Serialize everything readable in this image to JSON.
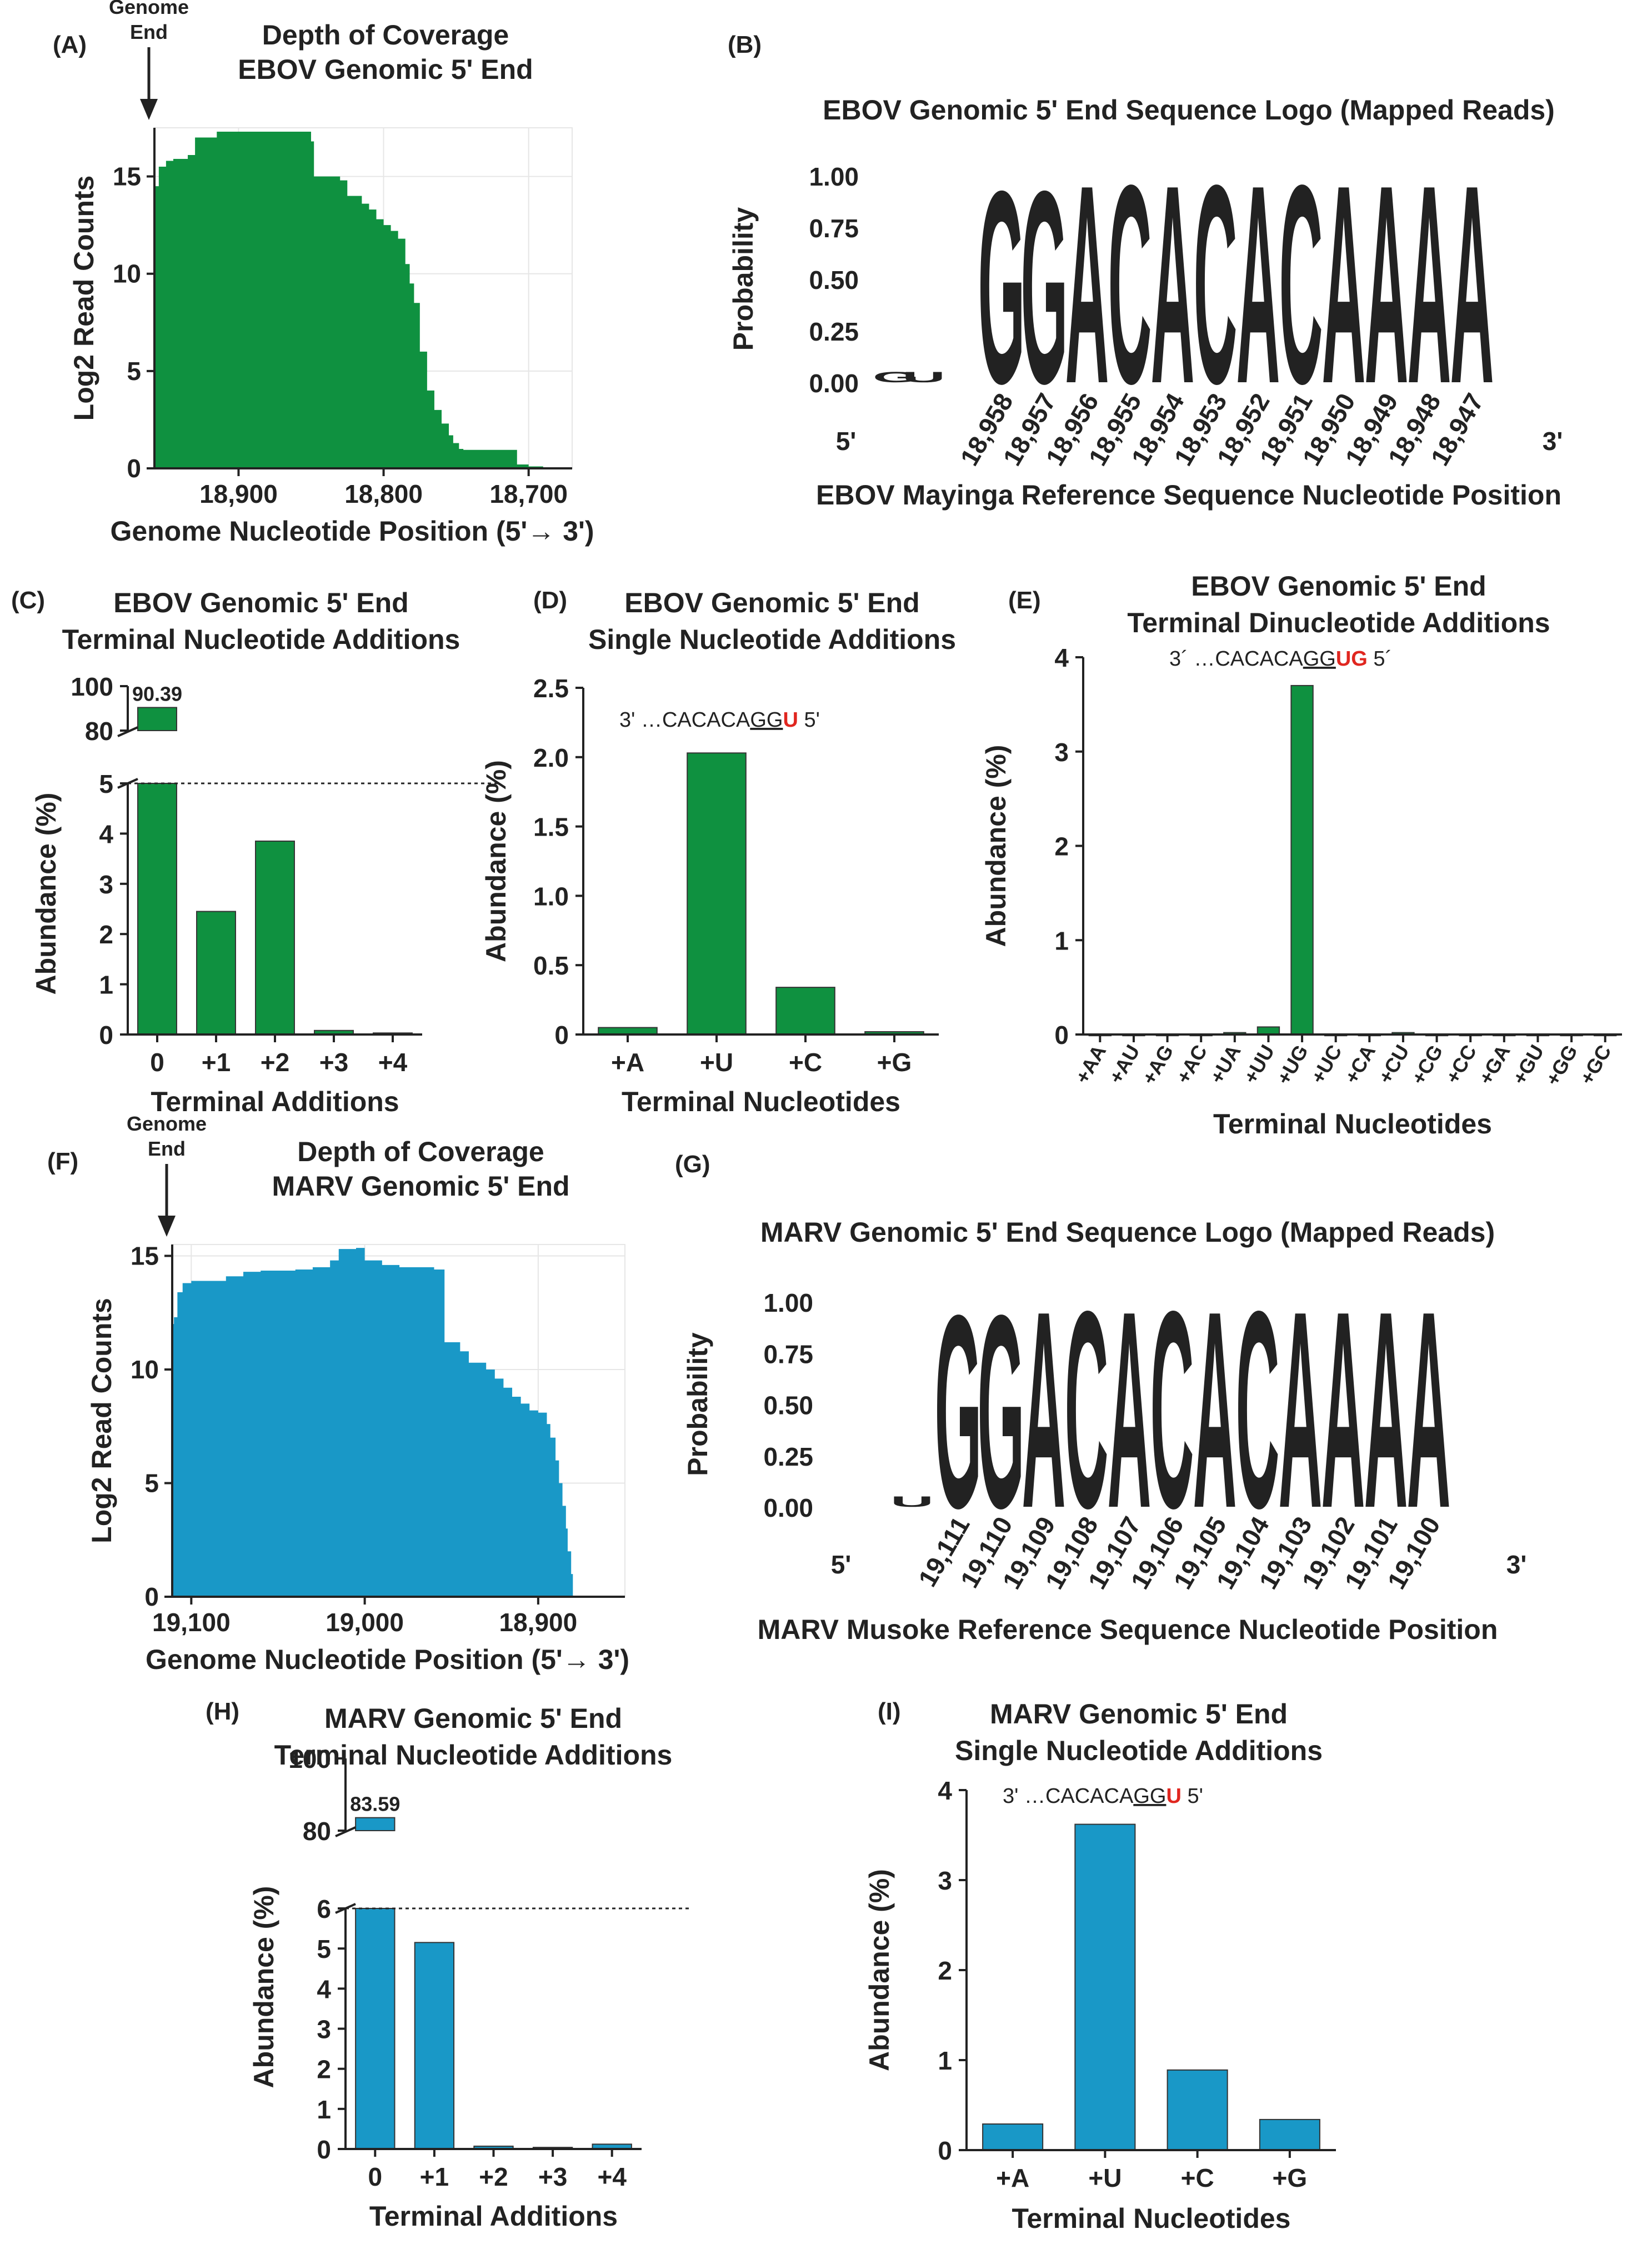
{
  "colors": {
    "ebov": "#0f9140",
    "marv": "#1998c7",
    "red": "#e0261f",
    "logoA": "#19a23c",
    "logoC": "#1a5fa6",
    "logoG": "#f7ae1a",
    "logoU": "#e0261f"
  },
  "panel_labels": {
    "A": "(A)",
    "B": "(B)",
    "C": "(C)",
    "D": "(D)",
    "E": "(E)",
    "F": "(F)",
    "G": "(G)",
    "H": "(H)",
    "I": "(I)"
  },
  "annotations": {
    "genome_end_line1": "Genome",
    "genome_end_line2": "End",
    "five_prime": "5'",
    "three_prime": "3'"
  },
  "chart_data": [
    {
      "id": "A",
      "type": "area",
      "title": [
        "Depth of Coverage",
        "EBOV Genomic 5' End"
      ],
      "xlabel": "Genome Nucleotide Position (5'→ 3')",
      "ylabel": "Log2 Read Counts",
      "xlim": [
        18958,
        18670
      ],
      "ylim": [
        0,
        17.5
      ],
      "xticks": [
        18900,
        18800,
        18700
      ],
      "xtick_labels": [
        "18,900",
        "18,800",
        "18,700"
      ],
      "yticks": [
        0,
        5,
        10,
        15
      ],
      "ytick_labels": [
        "0",
        "5",
        "10",
        "15"
      ],
      "x": [
        18958,
        18955,
        18950,
        18945,
        18935,
        18930,
        18915,
        18860,
        18850,
        18848,
        18830,
        18825,
        18815,
        18810,
        18805,
        18800,
        18795,
        18790,
        18785,
        18782,
        18779,
        18775,
        18770,
        18765,
        18760,
        18755,
        18752,
        18748,
        18745,
        18720,
        18710,
        18708,
        18700,
        18690
      ],
      "y": [
        14.5,
        15.5,
        15.8,
        15.9,
        16.1,
        17.0,
        17.3,
        17.3,
        16.8,
        15.0,
        14.8,
        14.0,
        13.6,
        13.3,
        12.8,
        12.5,
        12.2,
        11.8,
        10.5,
        9.5,
        8.5,
        6.0,
        4.0,
        3.0,
        2.3,
        1.7,
        1.3,
        1.0,
        0.95,
        0.95,
        0.95,
        0.2,
        0.1,
        0.05
      ]
    },
    {
      "id": "B",
      "type": "sequence_logo",
      "title": "EBOV Genomic 5' End Sequence Logo (Mapped Reads)",
      "xlabel": "EBOV Mayinga Reference Sequence Nucleotide Position",
      "ylabel": "Probability",
      "yticks": [
        "0.00",
        "0.25",
        "0.50",
        "0.75",
        "1.00"
      ],
      "ylim": [
        0,
        1
      ],
      "extra_positions": [
        {
          "letters": "GU",
          "height": 0.04
        }
      ],
      "positions": [
        "18,958",
        "18,957",
        "18,956",
        "18,955",
        "18,954",
        "18,953",
        "18,952",
        "18,951",
        "18,950",
        "18,949",
        "18,948",
        "18,947"
      ],
      "letters": [
        "G",
        "G",
        "A",
        "C",
        "A",
        "C",
        "A",
        "C",
        "A",
        "A",
        "A",
        "A"
      ],
      "heights": [
        0.97,
        0.97,
        1.0,
        1.0,
        1.0,
        1.0,
        1.0,
        1.0,
        1.0,
        1.0,
        1.0,
        1.0
      ]
    },
    {
      "id": "C",
      "type": "bar",
      "title": [
        "EBOV Genomic 5' End",
        "Terminal Nucleotide Additions"
      ],
      "xlabel": "Terminal Additions",
      "ylabel": "Abundance (%)",
      "categories": [
        "0",
        "+1",
        "+2",
        "+3",
        "+4"
      ],
      "values": [
        90.39,
        2.45,
        3.85,
        0.08,
        0.03
      ],
      "value_label": "90.39",
      "axis_break": [
        5,
        80
      ],
      "yticks_low": [
        "0",
        "1",
        "2",
        "3",
        "4",
        "5"
      ],
      "yticks_high": [
        "80",
        "100"
      ]
    },
    {
      "id": "D",
      "type": "bar",
      "title": [
        "EBOV Genomic 5' End",
        "Single Nucleotide Additions"
      ],
      "xlabel": "Terminal Nucleotides",
      "ylabel": "Abundance (%)",
      "categories": [
        "+A",
        "+U",
        "+C",
        "+G"
      ],
      "values": [
        0.05,
        2.03,
        0.34,
        0.02
      ],
      "ylim": [
        0,
        2.5
      ],
      "yticks": [
        "0",
        "0.5",
        "1.0",
        "1.5",
        "2.0",
        "2.5"
      ],
      "sequence": {
        "prefix": "3' …CACACA",
        "underlined": "GG",
        "red": "U",
        "suffix": " 5'"
      }
    },
    {
      "id": "E",
      "type": "bar",
      "title": [
        "EBOV Genomic 5' End",
        "Terminal Dinucleotide Additions"
      ],
      "xlabel": "Terminal Nucleotides",
      "ylabel": "Abundance (%)",
      "categories": [
        "+AA",
        "+AU",
        "+AG",
        "+AC",
        "+UA",
        "+UU",
        "+UG",
        "+UC",
        "+CA",
        "+CU",
        "+CG",
        "+CC",
        "+GA",
        "+GU",
        "+GG",
        "+GC"
      ],
      "values": [
        0.005,
        0.005,
        0.005,
        0.005,
        0.02,
        0.08,
        3.7,
        0.005,
        0.005,
        0.02,
        0.005,
        0.005,
        0.005,
        0.005,
        0.005,
        0.005
      ],
      "ylim": [
        0,
        4
      ],
      "yticks": [
        "0",
        "1",
        "2",
        "3",
        "4"
      ],
      "sequence": {
        "prefix": "3´ …CACACA",
        "underlined": "GG",
        "red": "UG",
        "suffix": " 5´"
      }
    },
    {
      "id": "F",
      "type": "area",
      "title": [
        "Depth of Coverage",
        "MARV Genomic 5' End"
      ],
      "xlabel": "Genome Nucleotide Position (5'→ 3')",
      "ylabel": "Log2 Read Counts",
      "xlim": [
        19111,
        18850
      ],
      "ylim": [
        0,
        15.5
      ],
      "xticks": [
        19100,
        19000,
        18900
      ],
      "xtick_labels": [
        "19,100",
        "19,000",
        "18,900"
      ],
      "yticks": [
        0,
        5,
        10,
        15
      ],
      "ytick_labels": [
        "0",
        "5",
        "10",
        "15"
      ],
      "x": [
        19111,
        19110,
        19108,
        19105,
        19100,
        19080,
        19070,
        19060,
        19040,
        19030,
        19020,
        19015,
        19005,
        19000,
        18990,
        18980,
        18960,
        18955,
        18954,
        18945,
        18940,
        18930,
        18925,
        18920,
        18915,
        18910,
        18905,
        18900,
        18895,
        18893,
        18890,
        18888,
        18886,
        18884,
        18883,
        18881,
        18880
      ],
      "y": [
        12.0,
        12.3,
        13.4,
        13.8,
        13.9,
        14.1,
        14.3,
        14.35,
        14.4,
        14.5,
        14.8,
        15.3,
        15.35,
        14.8,
        14.6,
        14.5,
        14.4,
        14.4,
        11.2,
        10.8,
        10.3,
        10.0,
        9.6,
        9.2,
        8.8,
        8.5,
        8.2,
        8.1,
        7.6,
        7.0,
        6.0,
        5.0,
        4.0,
        3.0,
        2.0,
        1.0,
        0.0
      ]
    },
    {
      "id": "G",
      "type": "sequence_logo",
      "title": "MARV Genomic 5' End Sequence Logo (Mapped Reads)",
      "xlabel": "MARV Musoke Reference Sequence Nucleotide Position",
      "ylabel": "Probability",
      "yticks": [
        "0.00",
        "0.25",
        "0.50",
        "0.75",
        "1.00"
      ],
      "ylim": [
        0,
        1
      ],
      "extra_positions": [
        {
          "letters": "U",
          "height": 0.03
        }
      ],
      "positions": [
        "19,111",
        "19,110",
        "19,109",
        "19,108",
        "19,107",
        "19,106",
        "19,105",
        "19,104",
        "19,103",
        "19,102",
        "19,101",
        "19,100"
      ],
      "letters": [
        "G",
        "G",
        "A",
        "C",
        "A",
        "C",
        "A",
        "C",
        "A",
        "A",
        "A",
        "A"
      ],
      "heights": [
        0.98,
        0.98,
        1.0,
        1.0,
        1.0,
        1.0,
        1.0,
        1.0,
        1.0,
        1.0,
        1.0,
        1.0
      ]
    },
    {
      "id": "H",
      "type": "bar",
      "title": [
        "MARV Genomic 5' End",
        "Terminal Nucleotide Additions"
      ],
      "xlabel": "Terminal Additions",
      "ylabel": "Abundance (%)",
      "categories": [
        "0",
        "+1",
        "+2",
        "+3",
        "+4"
      ],
      "values": [
        83.59,
        5.15,
        0.07,
        0.04,
        0.12
      ],
      "value_label": "83.59",
      "axis_break": [
        6,
        80
      ],
      "yticks_low": [
        "0",
        "1",
        "2",
        "3",
        "4",
        "5",
        "6"
      ],
      "yticks_high": [
        "80",
        "100"
      ]
    },
    {
      "id": "I",
      "type": "bar",
      "title": [
        "MARV Genomic 5' End",
        "Single Nucleotide Additions"
      ],
      "xlabel": "Terminal Nucleotides",
      "ylabel": "Abundance (%)",
      "categories": [
        "+A",
        "+U",
        "+C",
        "+G"
      ],
      "values": [
        0.29,
        3.62,
        0.89,
        0.34
      ],
      "ylim": [
        0,
        4
      ],
      "yticks": [
        "0",
        "1",
        "2",
        "3",
        "4"
      ],
      "sequence": {
        "prefix": "3' …CACACA",
        "underlined": "GG",
        "red": "U",
        "suffix": " 5'"
      }
    }
  ]
}
